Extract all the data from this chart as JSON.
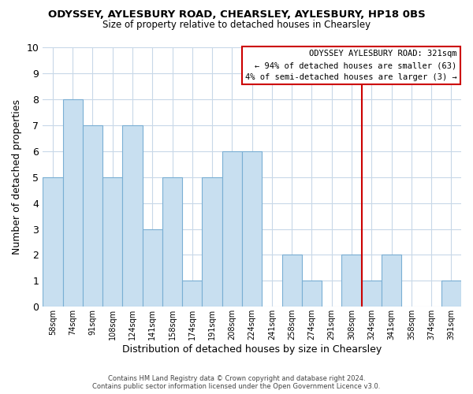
{
  "title": "ODYSSEY, AYLESBURY ROAD, CHEARSLEY, AYLESBURY, HP18 0BS",
  "subtitle": "Size of property relative to detached houses in Chearsley",
  "xlabel": "Distribution of detached houses by size in Chearsley",
  "ylabel": "Number of detached properties",
  "footer_line1": "Contains HM Land Registry data © Crown copyright and database right 2024.",
  "footer_line2": "Contains public sector information licensed under the Open Government Licence v3.0.",
  "bin_labels": [
    "58sqm",
    "74sqm",
    "91sqm",
    "108sqm",
    "124sqm",
    "141sqm",
    "158sqm",
    "174sqm",
    "191sqm",
    "208sqm",
    "224sqm",
    "241sqm",
    "258sqm",
    "274sqm",
    "291sqm",
    "308sqm",
    "324sqm",
    "341sqm",
    "358sqm",
    "374sqm",
    "391sqm"
  ],
  "bar_heights": [
    5,
    8,
    7,
    5,
    7,
    3,
    5,
    1,
    5,
    6,
    6,
    0,
    2,
    1,
    0,
    2,
    1,
    2,
    0,
    0,
    1
  ],
  "bar_color": "#c8dff0",
  "bar_edge_color": "#7aafd4",
  "grid_color": "#c8d8e8",
  "vline_color": "#cc0000",
  "vline_x": 15.5,
  "annotation_title": "ODYSSEY AYLESBURY ROAD: 321sqm",
  "annotation_line1": "← 94% of detached houses are smaller (63)",
  "annotation_line2": "4% of semi-detached houses are larger (3) →",
  "annotation_box_color": "#ffffff",
  "annotation_box_edge": "#cc0000",
  "ylim": [
    0,
    10
  ],
  "yticks": [
    0,
    1,
    2,
    3,
    4,
    5,
    6,
    7,
    8,
    9,
    10
  ],
  "background_color": "#ffffff"
}
